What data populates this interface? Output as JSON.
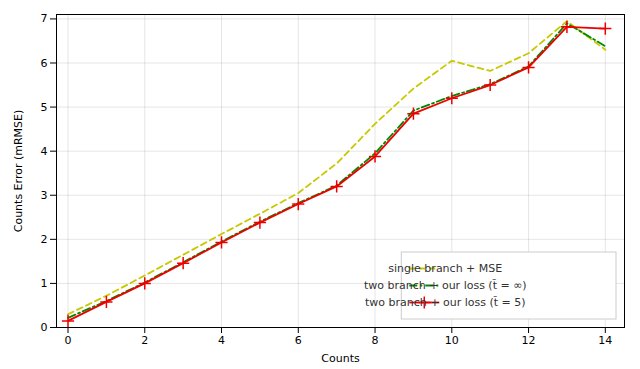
{
  "chart_data": {
    "type": "line",
    "xlabel": "Counts",
    "ylabel": "Counts Error (mRMSE)",
    "x": [
      0,
      1,
      2,
      3,
      4,
      5,
      6,
      7,
      8,
      9,
      10,
      11,
      12,
      13,
      14
    ],
    "xlim": [
      -0.3,
      14.5
    ],
    "ylim": [
      0,
      7.1
    ],
    "xticks": [
      0,
      2,
      4,
      6,
      8,
      10,
      12,
      14
    ],
    "yticks": [
      0,
      1,
      2,
      3,
      4,
      5,
      6,
      7
    ],
    "grid": true,
    "legend": "lower right",
    "series": [
      {
        "name": "single branch + MSE",
        "color": "#c8c800",
        "line_style": "dashed",
        "values": [
          0.3,
          0.72,
          1.18,
          1.65,
          2.12,
          2.58,
          3.05,
          3.72,
          4.62,
          5.42,
          6.05,
          5.82,
          6.22,
          6.95,
          6.3
        ]
      },
      {
        "name": "two branch + our loss (t̃ = ∞)",
        "color": "#008800",
        "line_style": "dashdot",
        "values": [
          0.22,
          0.6,
          1.02,
          1.48,
          1.95,
          2.4,
          2.82,
          3.22,
          3.95,
          4.92,
          5.25,
          5.52,
          5.92,
          6.9,
          6.38
        ]
      },
      {
        "name": "two branch + our loss (t̃ = 5)",
        "color": "#ee0000",
        "line_style": "solid",
        "marker": "plus",
        "values": [
          0.15,
          0.58,
          1.0,
          1.46,
          1.93,
          2.38,
          2.8,
          3.2,
          3.88,
          4.85,
          5.2,
          5.5,
          5.9,
          6.82,
          6.78
        ]
      }
    ]
  }
}
